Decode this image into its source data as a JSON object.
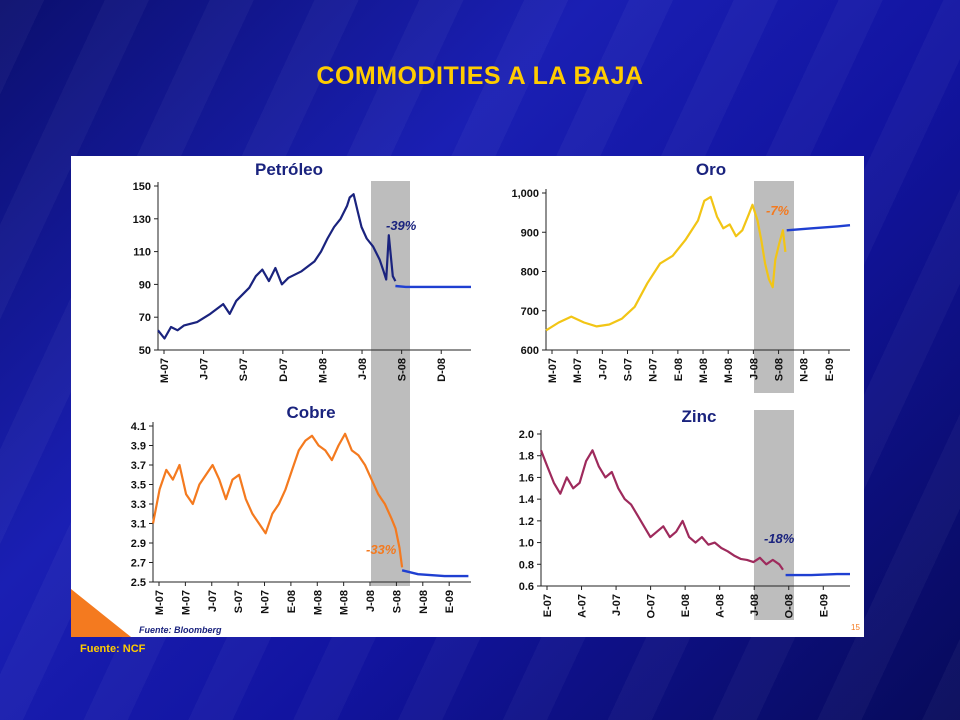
{
  "slide": {
    "title": "COMMODITIES A LA BAJA",
    "source_outer": "Fuente: NCF",
    "source_inner": "Fuente: Bloomberg",
    "page_number": "15",
    "colors": {
      "background": "#1417a6",
      "title": "#ffcc00",
      "band": "#bdbdbd",
      "forecast": "#1f3fd1"
    }
  },
  "chart_data": [
    {
      "type": "line",
      "title": "Petróleo",
      "annotation": "-39%",
      "color": "#1a237e",
      "forecast_color": "#1f3fd1",
      "ylim": [
        50,
        150
      ],
      "yticks": [
        50,
        70,
        90,
        110,
        130,
        150
      ],
      "xlabels": [
        "M-07",
        "J-07",
        "S-07",
        "D-07",
        "M-08",
        "J-08",
        "S-08",
        "D-08"
      ],
      "xlim": [
        0,
        24
      ],
      "band": [
        15,
        18
      ],
      "points": [
        [
          0,
          62
        ],
        [
          0.5,
          57
        ],
        [
          1,
          64
        ],
        [
          1.5,
          62
        ],
        [
          2,
          65
        ],
        [
          3,
          67
        ],
        [
          4,
          72
        ],
        [
          5,
          78
        ],
        [
          5.5,
          72
        ],
        [
          6,
          80
        ],
        [
          7,
          88
        ],
        [
          7.5,
          95
        ],
        [
          8,
          99
        ],
        [
          8.5,
          92
        ],
        [
          9,
          100
        ],
        [
          9.5,
          90
        ],
        [
          10,
          94
        ],
        [
          11,
          98
        ],
        [
          12,
          104
        ],
        [
          12.5,
          110
        ],
        [
          13,
          118
        ],
        [
          13.5,
          125
        ],
        [
          14,
          130
        ],
        [
          14.5,
          138
        ],
        [
          14.7,
          143
        ],
        [
          15,
          145
        ],
        [
          15.3,
          135
        ],
        [
          15.6,
          125
        ],
        [
          16,
          118
        ],
        [
          16.5,
          113
        ],
        [
          17,
          105
        ],
        [
          17.3,
          98
        ],
        [
          17.5,
          93
        ],
        [
          17.7,
          120
        ],
        [
          18,
          95
        ],
        [
          18.2,
          92
        ]
      ],
      "forecast": [
        [
          18.2,
          89
        ],
        [
          19,
          88.5
        ],
        [
          20,
          88.5
        ],
        [
          22,
          88.5
        ],
        [
          24,
          88.5
        ]
      ]
    },
    {
      "type": "line",
      "title": "Oro",
      "annotation": "-7%",
      "color": "#f2c515",
      "forecast_color": "#1f3fd1",
      "ylim": [
        600,
        1000
      ],
      "yticks": [
        "600",
        "700",
        "800",
        "900",
        "1,000"
      ],
      "ytick_values": [
        600,
        700,
        800,
        900,
        1000
      ],
      "xlabels": [
        "M-07",
        "M-07",
        "J-07",
        "S-07",
        "N-07",
        "E-08",
        "M-08",
        "M-08",
        "J-08",
        "S-08",
        "N-08",
        "E-09"
      ],
      "xlim": [
        0,
        24
      ],
      "band": [
        16,
        19
      ],
      "points": [
        [
          0,
          650
        ],
        [
          1,
          670
        ],
        [
          2,
          685
        ],
        [
          3,
          670
        ],
        [
          4,
          660
        ],
        [
          5,
          665
        ],
        [
          6,
          680
        ],
        [
          7,
          710
        ],
        [
          8,
          770
        ],
        [
          9,
          820
        ],
        [
          10,
          840
        ],
        [
          11,
          880
        ],
        [
          12,
          930
        ],
        [
          12.5,
          980
        ],
        [
          13,
          990
        ],
        [
          13.5,
          940
        ],
        [
          14,
          910
        ],
        [
          14.5,
          920
        ],
        [
          15,
          890
        ],
        [
          15.5,
          905
        ],
        [
          16,
          945
        ],
        [
          16.3,
          970
        ],
        [
          16.7,
          930
        ],
        [
          17,
          880
        ],
        [
          17.3,
          820
        ],
        [
          17.6,
          780
        ],
        [
          17.9,
          760
        ],
        [
          18.1,
          830
        ],
        [
          18.4,
          870
        ],
        [
          18.7,
          905
        ],
        [
          18.9,
          850
        ]
      ],
      "forecast": [
        [
          19,
          905
        ],
        [
          21,
          910
        ],
        [
          23,
          915
        ],
        [
          24,
          918
        ]
      ]
    },
    {
      "type": "line",
      "title": "Cobre",
      "annotation": "-33%",
      "color": "#f47a1f",
      "forecast_color": "#1f3fd1",
      "ylim": [
        2.5,
        4.1
      ],
      "yticks": [
        "2.5",
        "2.7",
        "2.9",
        "3.1",
        "3.3",
        "3.5",
        "3.7",
        "3.9",
        "4.1"
      ],
      "ytick_values": [
        2.5,
        2.7,
        2.9,
        3.1,
        3.3,
        3.5,
        3.7,
        3.9,
        4.1
      ],
      "xlabels": [
        "M-07",
        "M-07",
        "J-07",
        "S-07",
        "N-07",
        "E-08",
        "M-08",
        "M-08",
        "J-08",
        "S-08",
        "N-08",
        "E-09"
      ],
      "xlim": [
        0,
        24
      ],
      "band": [
        16,
        19
      ],
      "points": [
        [
          0,
          3.1
        ],
        [
          0.5,
          3.45
        ],
        [
          1,
          3.65
        ],
        [
          1.5,
          3.55
        ],
        [
          2,
          3.7
        ],
        [
          2.5,
          3.4
        ],
        [
          3,
          3.3
        ],
        [
          3.5,
          3.5
        ],
        [
          4,
          3.6
        ],
        [
          4.5,
          3.7
        ],
        [
          5,
          3.55
        ],
        [
          5.5,
          3.35
        ],
        [
          6,
          3.55
        ],
        [
          6.5,
          3.6
        ],
        [
          7,
          3.35
        ],
        [
          7.5,
          3.2
        ],
        [
          8,
          3.1
        ],
        [
          8.5,
          3.0
        ],
        [
          9,
          3.2
        ],
        [
          9.5,
          3.3
        ],
        [
          10,
          3.45
        ],
        [
          10.5,
          3.65
        ],
        [
          11,
          3.85
        ],
        [
          11.5,
          3.95
        ],
        [
          12,
          4.0
        ],
        [
          12.5,
          3.9
        ],
        [
          13,
          3.85
        ],
        [
          13.5,
          3.75
        ],
        [
          14,
          3.9
        ],
        [
          14.5,
          4.02
        ],
        [
          15,
          3.85
        ],
        [
          15.5,
          3.8
        ],
        [
          16,
          3.7
        ],
        [
          16.5,
          3.55
        ],
        [
          17,
          3.4
        ],
        [
          17.5,
          3.3
        ],
        [
          18,
          3.15
        ],
        [
          18.3,
          3.05
        ],
        [
          18.6,
          2.85
        ],
        [
          18.8,
          2.65
        ]
      ],
      "forecast": [
        [
          18.8,
          2.62
        ],
        [
          20,
          2.58
        ],
        [
          22,
          2.56
        ],
        [
          23.8,
          2.56
        ]
      ]
    },
    {
      "type": "line",
      "title": "Zinc",
      "annotation": "-18%",
      "color": "#9e2a5c",
      "forecast_color": "#1f3fd1",
      "ylim": [
        0.6,
        2.0
      ],
      "yticks": [
        "0.6",
        "0.8",
        "1.0",
        "1.2",
        "1.4",
        "1.6",
        "1.8",
        "2.0"
      ],
      "ytick_values": [
        0.6,
        0.8,
        1.0,
        1.2,
        1.4,
        1.6,
        1.8,
        2.0
      ],
      "xlabels": [
        "E-07",
        "A-07",
        "J-07",
        "O-07",
        "E-08",
        "A-08",
        "J-08",
        "O-08",
        "E-09"
      ],
      "xlim": [
        0,
        24
      ],
      "band": [
        16,
        19
      ],
      "points": [
        [
          0,
          1.85
        ],
        [
          0.5,
          1.7
        ],
        [
          1,
          1.55
        ],
        [
          1.5,
          1.45
        ],
        [
          2,
          1.6
        ],
        [
          2.5,
          1.5
        ],
        [
          3,
          1.55
        ],
        [
          3.5,
          1.75
        ],
        [
          4,
          1.85
        ],
        [
          4.5,
          1.7
        ],
        [
          5,
          1.6
        ],
        [
          5.5,
          1.65
        ],
        [
          6,
          1.5
        ],
        [
          6.5,
          1.4
        ],
        [
          7,
          1.35
        ],
        [
          7.5,
          1.25
        ],
        [
          8,
          1.15
        ],
        [
          8.5,
          1.05
        ],
        [
          9,
          1.1
        ],
        [
          9.5,
          1.15
        ],
        [
          10,
          1.05
        ],
        [
          10.5,
          1.1
        ],
        [
          11,
          1.2
        ],
        [
          11.5,
          1.05
        ],
        [
          12,
          1.0
        ],
        [
          12.5,
          1.05
        ],
        [
          13,
          0.98
        ],
        [
          13.5,
          1.0
        ],
        [
          14,
          0.95
        ],
        [
          14.5,
          0.92
        ],
        [
          15,
          0.88
        ],
        [
          15.5,
          0.85
        ],
        [
          16,
          0.84
        ],
        [
          16.5,
          0.82
        ],
        [
          17,
          0.86
        ],
        [
          17.5,
          0.8
        ],
        [
          18,
          0.84
        ],
        [
          18.5,
          0.8
        ],
        [
          18.8,
          0.75
        ]
      ],
      "forecast": [
        [
          19,
          0.7
        ],
        [
          21,
          0.7
        ],
        [
          23,
          0.71
        ],
        [
          24,
          0.71
        ]
      ]
    }
  ]
}
